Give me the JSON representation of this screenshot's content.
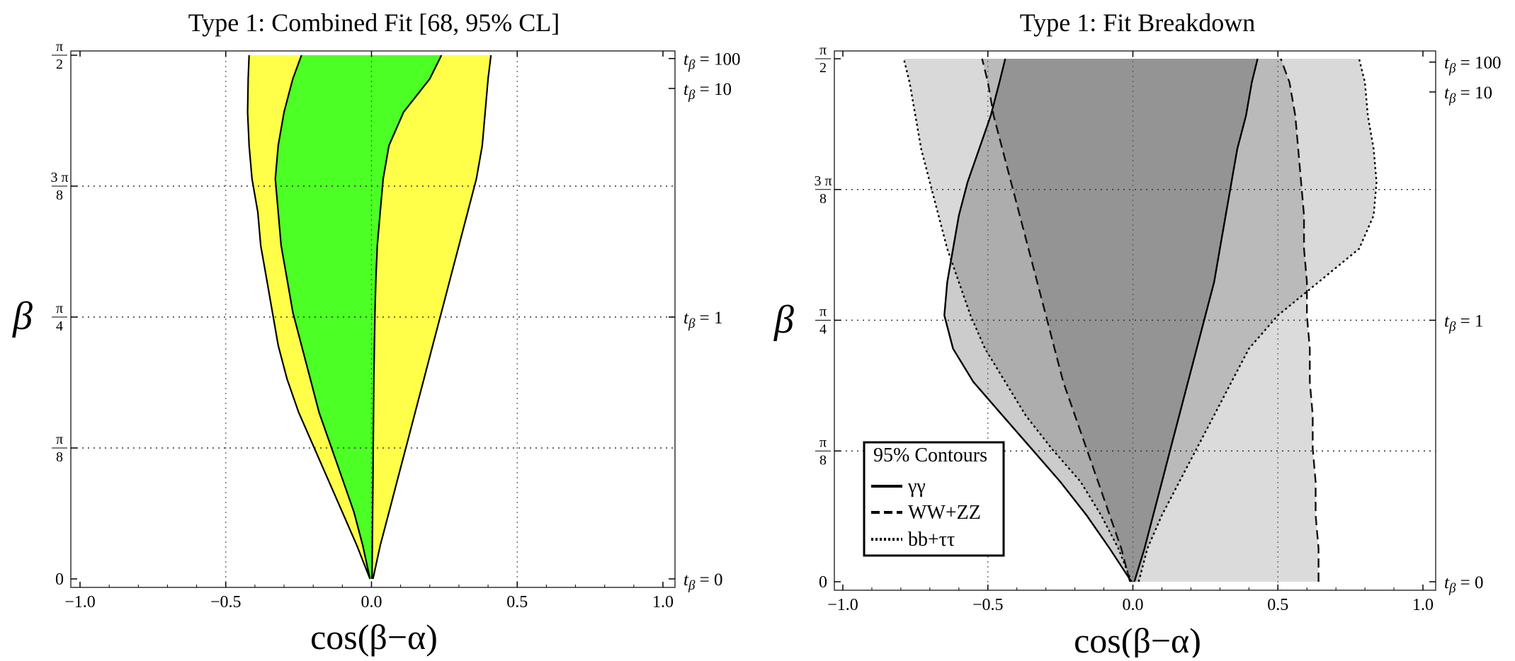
{
  "figure": {
    "panels": [
      {
        "title": "Type 1: Combined Fit  [68, 95% CL]",
        "xlabel": "cos(β−α)",
        "ylabel": "β",
        "x_ticks": [
          "−1.0",
          "−0.5",
          "0.0",
          "0.5",
          "1.0"
        ],
        "y_ticks": [
          "0",
          "π/8",
          "π/4",
          "3π/8",
          "π/2"
        ],
        "right_ticks": [
          "tβ = 0",
          "tβ = 1",
          "tβ = 10",
          "tβ = 100"
        ]
      },
      {
        "title": "Type 1: Fit Breakdown",
        "xlabel": "cos(β−α)",
        "ylabel": "β",
        "x_ticks": [
          "−1.0",
          "−0.5",
          "0.0",
          "0.5",
          "1.0"
        ],
        "y_ticks": [
          "0",
          "π/8",
          "π/4",
          "3π/8",
          "π/2"
        ],
        "right_ticks": [
          "tβ = 0",
          "tβ = 1",
          "tβ = 10",
          "tβ = 100"
        ],
        "legend": {
          "title": "95% Contours",
          "items": [
            "γγ",
            "WW+ZZ",
            "bb+ττ"
          ]
        }
      }
    ]
  },
  "chart_data": [
    {
      "type": "area",
      "title": "Type 1: Combined Fit  [68, 95% CL]",
      "xlabel": "cos(β−α)",
      "ylabel": "β",
      "xlim": [
        -1.0,
        1.0
      ],
      "ylim": [
        0,
        1.5708
      ],
      "grid": true,
      "right_axis": [
        {
          "label": "tβ = 0",
          "beta": 0.0
        },
        {
          "label": "tβ = 1",
          "beta": 0.7854
        },
        {
          "label": "tβ = 10",
          "beta": 1.4711
        },
        {
          "label": "tβ = 100",
          "beta": 1.5608
        }
      ],
      "colors": {
        "cl95": "#ffff4a",
        "cl68": "#4cff24"
      },
      "series": [
        {
          "name": "95% CL",
          "beta": [
            0,
            0.1,
            0.2,
            0.3,
            0.4,
            0.5,
            0.6,
            0.7,
            0.8,
            0.9,
            1.0,
            1.1,
            1.2,
            1.3,
            1.4,
            1.5,
            1.5708
          ],
          "x_left": [
            -0.005,
            -0.05,
            -0.1,
            -0.15,
            -0.2,
            -0.25,
            -0.29,
            -0.32,
            -0.34,
            -0.36,
            -0.38,
            -0.39,
            -0.41,
            -0.42,
            -0.425,
            -0.423,
            -0.42
          ],
          "x_right": [
            0.005,
            0.03,
            0.06,
            0.09,
            0.12,
            0.15,
            0.18,
            0.21,
            0.24,
            0.27,
            0.3,
            0.33,
            0.36,
            0.38,
            0.39,
            0.4,
            0.41
          ]
        },
        {
          "name": "68% CL",
          "beta": [
            0,
            0.1,
            0.2,
            0.3,
            0.4,
            0.5,
            0.6,
            0.7,
            0.8,
            0.9,
            1.0,
            1.1,
            1.2,
            1.3,
            1.4,
            1.5,
            1.5708
          ],
          "x_left": [
            -0.005,
            -0.03,
            -0.06,
            -0.1,
            -0.14,
            -0.18,
            -0.21,
            -0.24,
            -0.27,
            -0.29,
            -0.31,
            -0.32,
            -0.33,
            -0.32,
            -0.3,
            -0.27,
            -0.24
          ],
          "x_right": [
            0.002,
            0.003,
            0.004,
            0.005,
            0.006,
            0.007,
            0.008,
            0.01,
            0.012,
            0.015,
            0.02,
            0.03,
            0.04,
            0.06,
            0.11,
            0.2,
            0.24
          ]
        }
      ]
    },
    {
      "type": "area",
      "title": "Type 1: Fit Breakdown",
      "xlabel": "cos(β−α)",
      "ylabel": "β",
      "xlim": [
        -1.0,
        1.0
      ],
      "ylim": [
        0,
        1.5708
      ],
      "grid": true,
      "right_axis": [
        {
          "label": "tβ = 0",
          "beta": 0.0
        },
        {
          "label": "tβ = 1",
          "beta": 0.7854
        },
        {
          "label": "tβ = 10",
          "beta": 1.4711
        },
        {
          "label": "tβ = 100",
          "beta": 1.5608
        }
      ],
      "legend": {
        "title": "95% Contours",
        "position": "bottom-left",
        "items": [
          "γγ",
          "WW+ZZ",
          "bb+ττ"
        ]
      },
      "series": [
        {
          "name": "bb+ττ",
          "style": "dotted",
          "beta": [
            0,
            0.1,
            0.2,
            0.3,
            0.4,
            0.5,
            0.6,
            0.7,
            0.8,
            0.9,
            1.0,
            1.1,
            1.2,
            1.3,
            1.4,
            1.5,
            1.5708
          ],
          "x_left": [
            -0.005,
            -0.05,
            -0.11,
            -0.18,
            -0.28,
            -0.37,
            -0.44,
            -0.51,
            -0.56,
            -0.6,
            -0.64,
            -0.67,
            -0.7,
            -0.73,
            -0.75,
            -0.77,
            -0.79
          ],
          "x_right": [
            0.02,
            0.05,
            0.1,
            0.16,
            0.22,
            0.28,
            0.34,
            0.4,
            0.5,
            0.64,
            0.78,
            0.83,
            0.84,
            0.83,
            0.81,
            0.8,
            0.78
          ]
        },
        {
          "name": "WW+ZZ",
          "style": "dashed",
          "beta": [
            0,
            0.1,
            0.2,
            0.3,
            0.4,
            0.5,
            0.6,
            0.7,
            0.8,
            0.9,
            1.0,
            1.1,
            1.2,
            1.3,
            1.4,
            1.5,
            1.5708
          ],
          "x_left": [
            -0.01,
            -0.04,
            -0.08,
            -0.12,
            -0.16,
            -0.2,
            -0.24,
            -0.27,
            -0.3,
            -0.33,
            -0.36,
            -0.39,
            -0.42,
            -0.45,
            -0.48,
            -0.5,
            -0.52
          ],
          "x_right": [
            0.64,
            0.64,
            0.63,
            0.63,
            0.62,
            0.62,
            0.61,
            0.61,
            0.6,
            0.6,
            0.59,
            0.59,
            0.58,
            0.57,
            0.56,
            0.54,
            0.51
          ]
        },
        {
          "name": "γγ",
          "style": "solid",
          "beta": [
            0,
            0.1,
            0.2,
            0.3,
            0.4,
            0.5,
            0.6,
            0.7,
            0.8,
            0.9,
            1.0,
            1.1,
            1.2,
            1.3,
            1.4,
            1.5,
            1.5708
          ],
          "x_left": [
            -0.005,
            -0.08,
            -0.16,
            -0.25,
            -0.35,
            -0.45,
            -0.55,
            -0.62,
            -0.65,
            -0.64,
            -0.62,
            -0.6,
            -0.57,
            -0.53,
            -0.49,
            -0.46,
            -0.44
          ],
          "x_right": [
            0.005,
            0.04,
            0.07,
            0.1,
            0.13,
            0.16,
            0.19,
            0.22,
            0.25,
            0.28,
            0.3,
            0.32,
            0.34,
            0.36,
            0.39,
            0.41,
            0.43
          ]
        }
      ]
    }
  ]
}
